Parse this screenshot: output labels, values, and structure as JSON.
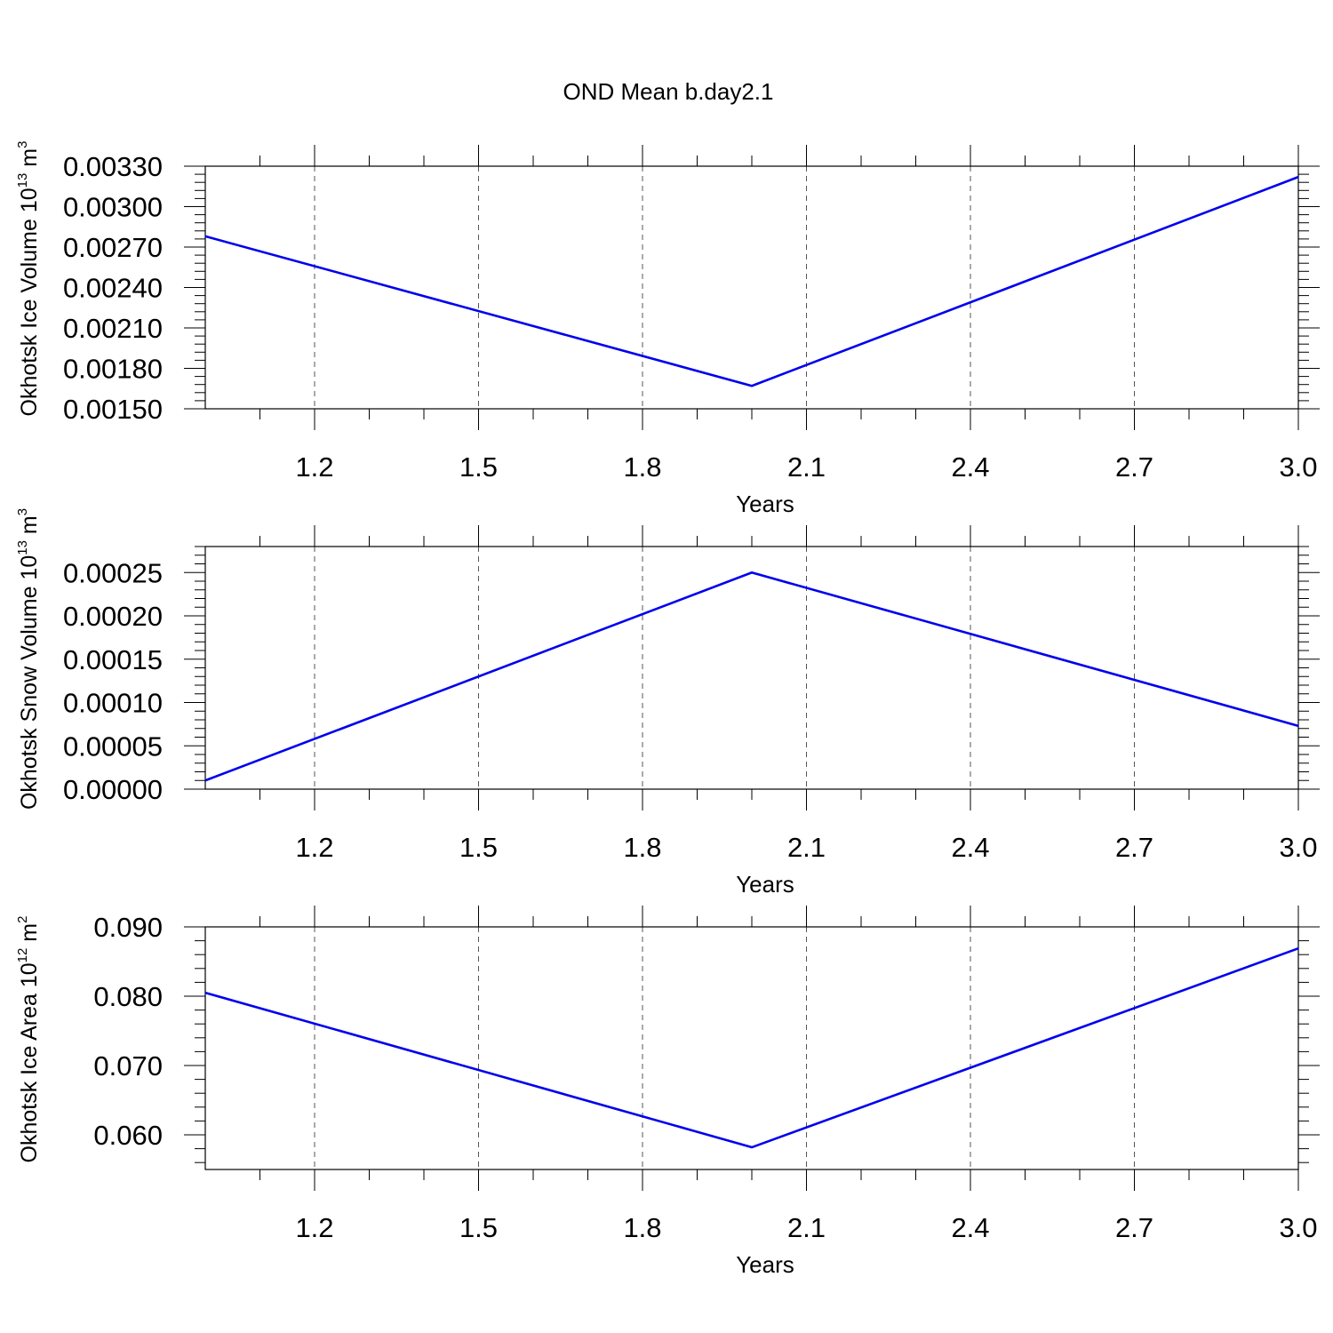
{
  "title": "OND Mean b.day2.1",
  "line_color": "#0000ee",
  "chart_data": [
    {
      "type": "line",
      "ylabel": {
        "text": "Okhotsk Ice Volume 10",
        "exp": "13",
        "unit": " m",
        "unit_exp": "3"
      },
      "xlabel": "Years",
      "xlim": [
        1.0,
        3.0
      ],
      "ylim": [
        0.0015,
        0.0033
      ],
      "xticks": [
        "1.2",
        "1.5",
        "1.8",
        "2.1",
        "2.4",
        "2.7",
        "3.0"
      ],
      "yticks": [
        "0.00150",
        "0.00180",
        "0.00210",
        "0.00240",
        "0.00270",
        "0.00300",
        "0.00330"
      ],
      "x": [
        1.0,
        2.0,
        3.0
      ],
      "y": [
        0.00278,
        0.00167,
        0.00322
      ]
    },
    {
      "type": "line",
      "ylabel": {
        "text": "Okhotsk Snow Volume 10",
        "exp": "13",
        "unit": " m",
        "unit_exp": "3"
      },
      "xlabel": "Years",
      "xlim": [
        1.0,
        3.0
      ],
      "ylim": [
        0.0,
        0.00028
      ],
      "xticks": [
        "1.2",
        "1.5",
        "1.8",
        "2.1",
        "2.4",
        "2.7",
        "3.0"
      ],
      "yticks": [
        "0.00000",
        "0.00005",
        "0.00010",
        "0.00015",
        "0.00020",
        "0.00025"
      ],
      "x": [
        1.0,
        2.0,
        3.0
      ],
      "y": [
        1e-05,
        0.00025,
        7.3e-05
      ]
    },
    {
      "type": "line",
      "ylabel": {
        "text": "Okhotsk Ice Area 10",
        "exp": "12",
        "unit": " m",
        "unit_exp": "2"
      },
      "xlabel": "Years",
      "xlim": [
        1.0,
        3.0
      ],
      "ylim": [
        0.055,
        0.09
      ],
      "xticks": [
        "1.2",
        "1.5",
        "1.8",
        "2.1",
        "2.4",
        "2.7",
        "3.0"
      ],
      "yticks": [
        "0.060",
        "0.070",
        "0.080",
        "0.090"
      ],
      "x": [
        1.0,
        2.0,
        3.0
      ],
      "y": [
        0.0805,
        0.0582,
        0.0869
      ]
    }
  ]
}
